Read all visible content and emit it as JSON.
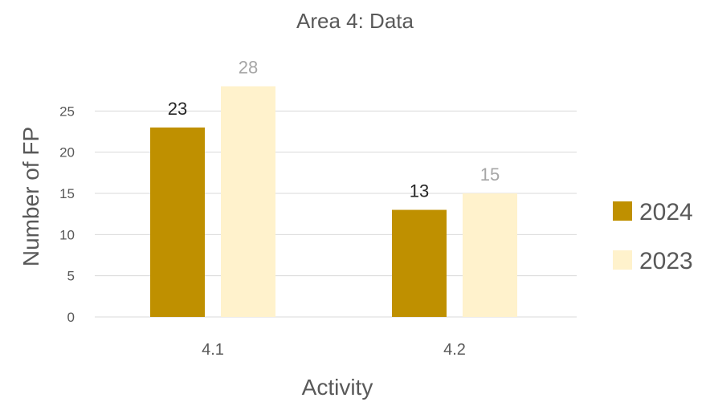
{
  "chart_data": {
    "type": "bar",
    "title": "Area 4: Data",
    "xlabel": "Activity",
    "ylabel": "Number of FP",
    "categories": [
      "4.1",
      "4.2"
    ],
    "series": [
      {
        "name": "2024",
        "values": [
          23,
          13
        ],
        "color": "#BF9000",
        "label_color": "#262626"
      },
      {
        "name": "2023",
        "values": [
          28,
          15
        ],
        "color": "#FFF2CC",
        "label_color": "#A6A6A6"
      }
    ],
    "ylim": [
      0,
      30
    ],
    "yticks": [
      0,
      5,
      10,
      15,
      20,
      25
    ],
    "grid": true,
    "gridline_color": "#D9D9D9",
    "legend_position": "right"
  }
}
